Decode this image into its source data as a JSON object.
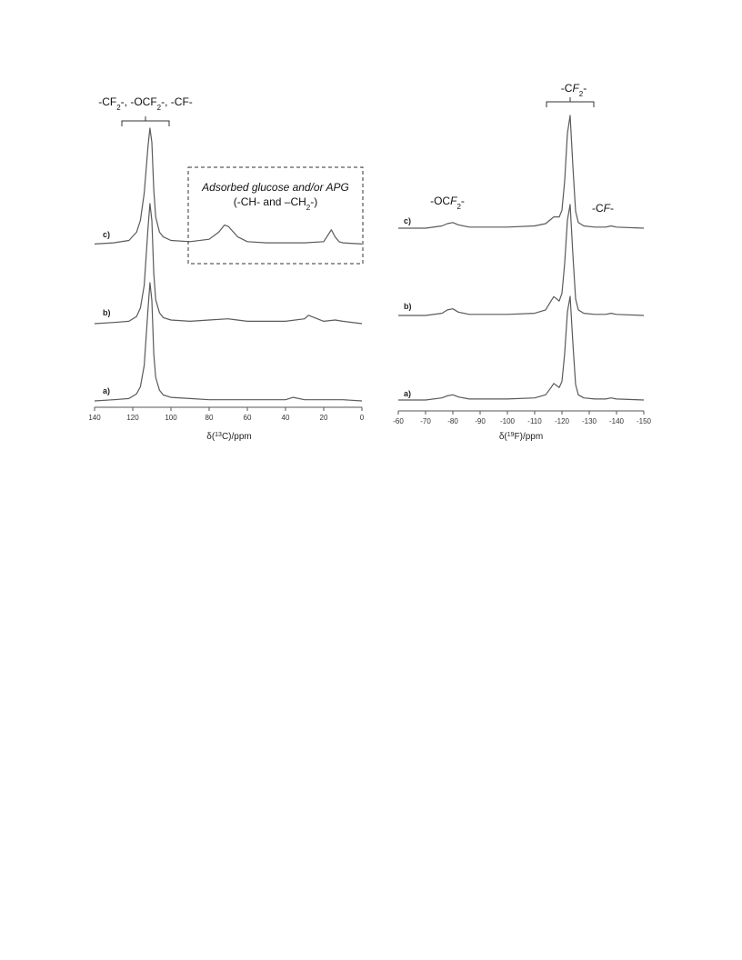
{
  "chart_data": [
    {
      "type": "line",
      "xlabel": "δ(13C)/ppm",
      "xlabel_parts": [
        "δ(",
        "13",
        "C)/ppm"
      ],
      "xlim": [
        140,
        0
      ],
      "xticks": [
        140,
        120,
        100,
        80,
        60,
        40,
        20,
        0
      ],
      "reversed_x": true,
      "grid": false,
      "series": [
        {
          "name": "a)",
          "x": [
            140,
            130,
            122,
            118,
            116,
            114,
            112,
            111,
            110,
            109,
            108,
            106,
            104,
            100,
            90,
            80,
            60,
            40,
            36,
            30,
            20,
            10,
            0
          ],
          "y": [
            0.0,
            0.01,
            0.02,
            0.06,
            0.12,
            0.3,
            0.78,
            1.0,
            0.85,
            0.4,
            0.2,
            0.09,
            0.05,
            0.03,
            0.02,
            0.01,
            0.01,
            0.01,
            0.03,
            0.01,
            0.01,
            0.01,
            0.0
          ]
        },
        {
          "name": "b)",
          "x": [
            140,
            130,
            122,
            118,
            116,
            114,
            112,
            111,
            110,
            109,
            108,
            106,
            104,
            100,
            90,
            80,
            70,
            60,
            40,
            30,
            28,
            20,
            14,
            10,
            0
          ],
          "y": [
            0.0,
            0.01,
            0.02,
            0.06,
            0.13,
            0.32,
            0.8,
            1.0,
            0.86,
            0.42,
            0.2,
            0.09,
            0.05,
            0.03,
            0.02,
            0.03,
            0.04,
            0.02,
            0.02,
            0.04,
            0.07,
            0.02,
            0.03,
            0.02,
            0.0
          ]
        },
        {
          "name": "c)",
          "x": [
            140,
            130,
            122,
            118,
            116,
            114,
            112,
            111,
            110,
            109,
            108,
            106,
            104,
            100,
            90,
            80,
            75,
            72,
            70,
            65,
            60,
            50,
            40,
            30,
            20,
            16,
            14,
            12,
            10,
            0
          ],
          "y": [
            0.02,
            0.03,
            0.05,
            0.12,
            0.22,
            0.45,
            0.85,
            1.0,
            0.88,
            0.48,
            0.25,
            0.12,
            0.08,
            0.05,
            0.04,
            0.06,
            0.12,
            0.18,
            0.17,
            0.08,
            0.04,
            0.03,
            0.03,
            0.03,
            0.04,
            0.14,
            0.08,
            0.04,
            0.03,
            0.02
          ]
        }
      ],
      "trace_labels": [
        "a)",
        "b)",
        "c)"
      ],
      "annotations": {
        "peak_group_parts": [
          "-CF",
          "2",
          "-, -OCF",
          "2",
          "-, -CF-"
        ],
        "box_title": "Adsorbed glucose and/or APG",
        "box_subtitle_parts": [
          "(-CH- and –CH",
          "2",
          "-)"
        ]
      }
    },
    {
      "type": "line",
      "xlabel": "δ(19F)/ppm",
      "xlabel_parts": [
        "δ(",
        "19",
        "F)/ppm"
      ],
      "xlim": [
        -60,
        -150
      ],
      "xticks": [
        -60,
        -70,
        -80,
        -90,
        -100,
        -110,
        -120,
        -130,
        -140,
        -150
      ],
      "reversed_x": true,
      "grid": false,
      "series": [
        {
          "name": "a)",
          "x": [
            -60,
            -70,
            -76,
            -78,
            -80,
            -82,
            -86,
            -100,
            -110,
            -114,
            -116,
            -117,
            -118,
            -119,
            -120,
            -121,
            -122,
            -123,
            -124,
            -125,
            -126,
            -128,
            -132,
            -136,
            -138,
            -140,
            -150
          ],
          "y": [
            0.0,
            0.0,
            0.02,
            0.04,
            0.05,
            0.03,
            0.01,
            0.01,
            0.02,
            0.05,
            0.12,
            0.16,
            0.14,
            0.12,
            0.18,
            0.45,
            0.85,
            1.0,
            0.55,
            0.15,
            0.05,
            0.02,
            0.01,
            0.01,
            0.02,
            0.01,
            0.0
          ]
        },
        {
          "name": "b)",
          "x": [
            -60,
            -70,
            -76,
            -78,
            -80,
            -82,
            -86,
            -100,
            -110,
            -114,
            -116,
            -117,
            -118,
            -119,
            -120,
            -121,
            -122,
            -123,
            -124,
            -125,
            -126,
            -128,
            -132,
            -136,
            -138,
            -140,
            -150
          ],
          "y": [
            0.0,
            0.0,
            0.02,
            0.05,
            0.06,
            0.03,
            0.01,
            0.01,
            0.02,
            0.05,
            0.13,
            0.17,
            0.15,
            0.13,
            0.2,
            0.47,
            0.86,
            1.0,
            0.55,
            0.15,
            0.05,
            0.02,
            0.01,
            0.01,
            0.02,
            0.01,
            0.0
          ]
        },
        {
          "name": "c)",
          "x": [
            -60,
            -70,
            -76,
            -78,
            -80,
            -82,
            -86,
            -100,
            -110,
            -114,
            -116,
            -117,
            -118,
            -119,
            -120,
            -121,
            -122,
            -123,
            -124,
            -125,
            -126,
            -128,
            -132,
            -136,
            -138,
            -140,
            -150
          ],
          "y": [
            0.0,
            0.0,
            0.02,
            0.04,
            0.05,
            0.03,
            0.01,
            0.01,
            0.02,
            0.04,
            0.08,
            0.1,
            0.1,
            0.1,
            0.16,
            0.42,
            0.84,
            1.0,
            0.55,
            0.15,
            0.05,
            0.02,
            0.01,
            0.01,
            0.02,
            0.01,
            0.0
          ]
        }
      ],
      "trace_labels": [
        "a)",
        "b)",
        "c)"
      ],
      "annotations": {
        "cf2_parts": [
          "-C",
          "F",
          "2",
          "-"
        ],
        "ocf2_parts": [
          "-OC",
          "F",
          "2",
          "-"
        ],
        "cf_parts": [
          "-C",
          "F",
          "-"
        ]
      }
    }
  ]
}
